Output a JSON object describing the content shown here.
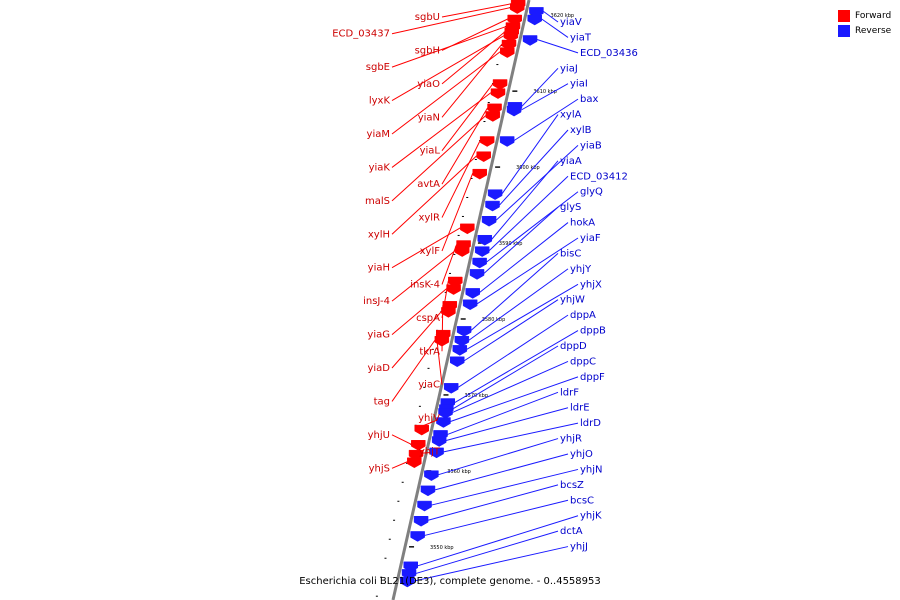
{
  "colors": {
    "forward": "#ff0000",
    "reverse": "#1a1aff",
    "forward_label": "#cc0000",
    "reverse_label": "#0000cc",
    "axis": "#808080"
  },
  "legend": [
    {
      "label": "Forward",
      "color": "#ff0000"
    },
    {
      "label": "Reverse",
      "color": "#1a1aff"
    }
  ],
  "caption": "Escherichia coli BL21(DE3), complete genome. - 0..4558953",
  "kbp_labels": [
    {
      "text": "3620 kbp",
      "pos": 3620
    },
    {
      "text": "3610 kbp",
      "pos": 3610
    },
    {
      "text": "3600 kbp",
      "pos": 3600
    },
    {
      "text": "3590 kbp",
      "pos": 3590
    },
    {
      "text": "3580 kbp",
      "pos": 3580
    },
    {
      "text": "3570 kbp",
      "pos": 3570
    },
    {
      "text": "3560 kbp",
      "pos": 3560
    },
    {
      "text": "3550 kbp",
      "pos": 3550
    }
  ],
  "forward_genes": [
    {
      "name": "sgbU",
      "pos": 3621.5
    },
    {
      "name": "ECD_03437",
      "pos": 3621.0
    },
    {
      "name": "sgbH",
      "pos": 3619.5
    },
    {
      "name": "sgbE",
      "pos": 3618.5
    },
    {
      "name": "yiaO",
      "pos": 3617.8
    },
    {
      "name": "lyxK",
      "pos": 3617.3
    },
    {
      "name": "yiaN",
      "pos": 3616.2
    },
    {
      "name": "yiaM",
      "pos": 3615.2
    },
    {
      "name": "yiaL",
      "pos": 3611.0
    },
    {
      "name": "yiaK",
      "pos": 3609.8
    },
    {
      "name": "avtA",
      "pos": 3607.8
    },
    {
      "name": "malS",
      "pos": 3606.8
    },
    {
      "name": "xylR",
      "pos": 3603.5
    },
    {
      "name": "xylH",
      "pos": 3601.5
    },
    {
      "name": "xylF",
      "pos": 3599.2
    },
    {
      "name": "yiaH",
      "pos": 3592.0
    },
    {
      "name": "insK-4",
      "pos": 3589.8
    },
    {
      "name": "insJ-4",
      "pos": 3589.0
    },
    {
      "name": "cspA",
      "pos": 3585.0
    },
    {
      "name": "yiaG",
      "pos": 3584.0
    },
    {
      "name": "tkrA",
      "pos": 3581.8
    },
    {
      "name": "yiaD",
      "pos": 3581.0
    },
    {
      "name": "yiaC",
      "pos": 3578.0
    },
    {
      "name": "tag",
      "pos": 3577.2
    },
    {
      "name": "yhjV",
      "pos": 3565.5
    },
    {
      "name": "yhjU",
      "pos": 3563.5
    },
    {
      "name": "yhjT",
      "pos": 3562.2
    },
    {
      "name": "yhjS",
      "pos": 3561.2
    }
  ],
  "reverse_genes": [
    {
      "name": "yiaV",
      "pos": 3620.5
    },
    {
      "name": "yiaT",
      "pos": 3619.5
    },
    {
      "name": "ECD_03436",
      "pos": 3616.8
    },
    {
      "name": "yiaJ",
      "pos": 3608.0
    },
    {
      "name": "yiaI",
      "pos": 3607.5
    },
    {
      "name": "bax",
      "pos": 3603.5
    },
    {
      "name": "xylA",
      "pos": 3596.5
    },
    {
      "name": "xylB",
      "pos": 3595.0
    },
    {
      "name": "yiaB",
      "pos": 3593.0
    },
    {
      "name": "yiaA",
      "pos": 3590.5
    },
    {
      "name": "ECD_03412",
      "pos": 3589.0
    },
    {
      "name": "glyQ",
      "pos": 3587.5
    },
    {
      "name": "glyS",
      "pos": 3586.0
    },
    {
      "name": "hokA",
      "pos": 3583.5
    },
    {
      "name": "yiaF",
      "pos": 3582.0
    },
    {
      "name": "bisC",
      "pos": 3578.5
    },
    {
      "name": "yhjY",
      "pos": 3577.2
    },
    {
      "name": "yhjX",
      "pos": 3576.0
    },
    {
      "name": "yhjW",
      "pos": 3574.5
    },
    {
      "name": "dppA",
      "pos": 3571.0
    },
    {
      "name": "dppB",
      "pos": 3569.0
    },
    {
      "name": "dppD",
      "pos": 3568.2
    },
    {
      "name": "dppC",
      "pos": 3567.7
    },
    {
      "name": "dppF",
      "pos": 3566.5
    },
    {
      "name": "ldrF",
      "pos": 3564.8
    },
    {
      "name": "ldrE",
      "pos": 3564.0
    },
    {
      "name": "ldrD",
      "pos": 3562.5
    },
    {
      "name": "yhjR",
      "pos": 3559.5
    },
    {
      "name": "yhjO",
      "pos": 3557.5
    },
    {
      "name": "yhjN",
      "pos": 3555.5
    },
    {
      "name": "bcsZ",
      "pos": 3553.5
    },
    {
      "name": "bcsC",
      "pos": 3551.5
    },
    {
      "name": "yhjK",
      "pos": 3547.5
    },
    {
      "name": "dctA",
      "pos": 3546.5
    },
    {
      "name": "yhjJ",
      "pos": 3545.5
    }
  ]
}
